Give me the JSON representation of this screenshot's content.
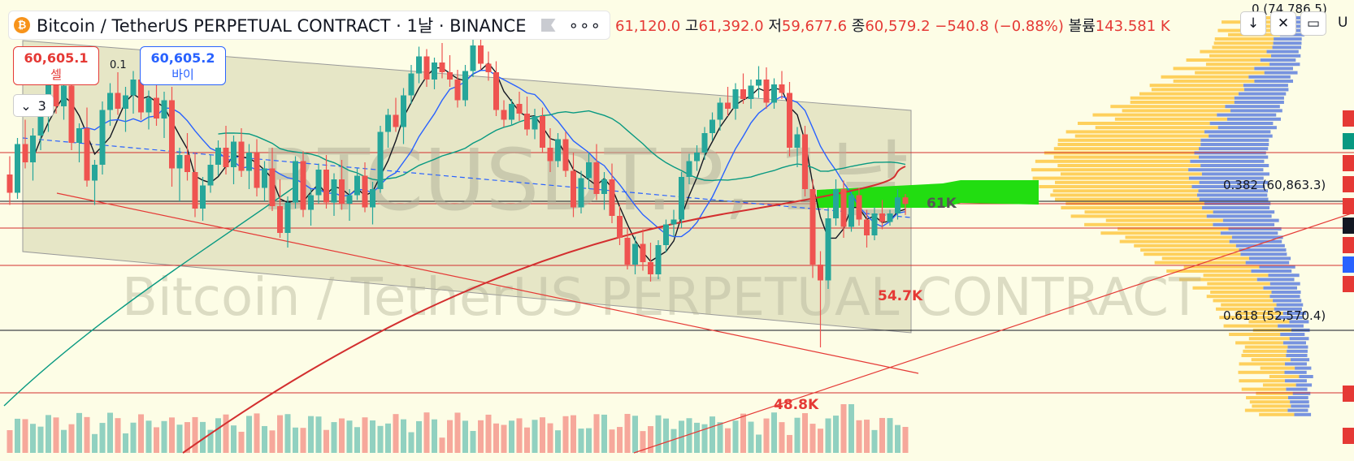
{
  "header": {
    "coin_icon": "bitcoin-icon",
    "symbol_title": "Bitcoin / TetherUS PERPETUAL CONTRACT · 1날 · BINANCE",
    "more_label": "∘∘∘"
  },
  "ohlc": {
    "open_value": "61,120.0",
    "high_key": "고",
    "high_value": "61,392.0",
    "low_key": "저",
    "low_value": "59,677.6",
    "close_key": "종",
    "close_value": "60,579.2",
    "change": "−540.8 (−0.88%)",
    "volume_key": "볼륨",
    "volume_value": "143.581 K"
  },
  "trade": {
    "sell_price": "60,605.1",
    "sell_label": "셀",
    "buy_price": "60,605.2",
    "buy_label": "바이",
    "lot_value": "3",
    "spread": "0.1"
  },
  "toolbar": {
    "arrow_icon": "↓",
    "collapse_icon": "✕",
    "window_icon": "▭",
    "cutoff_label": "U"
  },
  "watermark": {
    "ticker": "BTCUSDT.P, 1날",
    "name": "Bitcoin / TetherUS PERPETUAL CONTRACT"
  },
  "annotations": {
    "fib_top": "0 (74,786.5)",
    "fib_382": "0.382 (60,863.3)",
    "fib_618": "0.618 (52,570.4)",
    "level_61k": "61K",
    "level_547k": "54.7K",
    "level_488k": "48.8K"
  },
  "colors": {
    "candle_up": "#26a69a",
    "candle_down": "#ef5350",
    "ma_blue": "#2962ff",
    "ma_green": "#089981",
    "ma_red": "#d32f2f",
    "channel_fill": "#c8c8a0",
    "highlight_green": "#22dd11",
    "vp_orange": "#ffb300",
    "vp_blue": "#4a6fdc"
  },
  "chart_data": {
    "type": "candlestick",
    "symbol": "BTCUSDT.P",
    "interval": "1D",
    "last_close": 60579.2,
    "candles": [
      [
        63000,
        64500,
        60500,
        61500
      ],
      [
        61500,
        66000,
        61000,
        65500
      ],
      [
        65500,
        67500,
        63500,
        64000
      ],
      [
        64000,
        66800,
        62500,
        66200
      ],
      [
        66200,
        68800,
        65000,
        67900
      ],
      [
        67900,
        71500,
        66500,
        71000
      ],
      [
        71000,
        71800,
        68000,
        68600
      ],
      [
        68600,
        70800,
        67500,
        70300
      ],
      [
        70300,
        71000,
        65000,
        65600
      ],
      [
        65600,
        67200,
        64000,
        66800
      ],
      [
        66800,
        68500,
        62000,
        62500
      ],
      [
        62500,
        64200,
        60500,
        63800
      ],
      [
        63800,
        69000,
        63000,
        68300
      ],
      [
        68300,
        70500,
        67000,
        69700
      ],
      [
        69700,
        71400,
        67900,
        68400
      ],
      [
        68400,
        70200,
        66500,
        69500
      ],
      [
        69500,
        71500,
        68000,
        70800
      ],
      [
        70800,
        71800,
        67500,
        68100
      ],
      [
        68100,
        69900,
        66700,
        69300
      ],
      [
        69300,
        71000,
        67000,
        67600
      ],
      [
        67600,
        69800,
        66000,
        69100
      ],
      [
        69100,
        70200,
        62000,
        63500
      ],
      [
        63500,
        65200,
        60800,
        64600
      ],
      [
        64600,
        66400,
        62500,
        63200
      ],
      [
        63200,
        64800,
        59500,
        60200
      ],
      [
        60200,
        62800,
        59200,
        62100
      ],
      [
        62100,
        64600,
        61500,
        63800
      ],
      [
        63800,
        65800,
        62900,
        65200
      ],
      [
        65200,
        67000,
        63000,
        63600
      ],
      [
        63600,
        66200,
        62200,
        65700
      ],
      [
        65700,
        66800,
        62800,
        63300
      ],
      [
        63300,
        65500,
        61800,
        64800
      ],
      [
        64800,
        65900,
        61200,
        61900
      ],
      [
        61900,
        64100,
        60800,
        63500
      ],
      [
        63500,
        65200,
        60000,
        60400
      ],
      [
        60400,
        62600,
        57800,
        58200
      ],
      [
        58200,
        61200,
        57000,
        60700
      ],
      [
        60700,
        64500,
        60200,
        64100
      ],
      [
        64100,
        64900,
        59500,
        60100
      ],
      [
        60100,
        61800,
        58800,
        61300
      ],
      [
        61300,
        63900,
        60600,
        63400
      ],
      [
        63400,
        64600,
        60200,
        60700
      ],
      [
        60700,
        63100,
        59600,
        62600
      ],
      [
        62600,
        64200,
        60100,
        60600
      ],
      [
        60600,
        61800,
        59200,
        61300
      ],
      [
        61300,
        63500,
        60900,
        62900
      ],
      [
        62900,
        64000,
        59900,
        60300
      ],
      [
        60300,
        62400,
        58900,
        61800
      ],
      [
        61800,
        67000,
        61500,
        66500
      ],
      [
        66500,
        68400,
        65200,
        67900
      ],
      [
        67900,
        69300,
        66500,
        66900
      ],
      [
        66900,
        70100,
        65500,
        69500
      ],
      [
        69500,
        72000,
        68800,
        71300
      ],
      [
        71300,
        73500,
        70500,
        72700
      ],
      [
        72700,
        73300,
        70200,
        70800
      ],
      [
        70800,
        72600,
        70000,
        72200
      ],
      [
        72200,
        73800,
        70900,
        71400
      ],
      [
        71400,
        72800,
        70200,
        70800
      ],
      [
        70800,
        71600,
        68500,
        69100
      ],
      [
        69100,
        72000,
        68600,
        71500
      ],
      [
        71500,
        74200,
        71000,
        73600
      ],
      [
        73600,
        74500,
        71600,
        72100
      ],
      [
        72100,
        73100,
        70700,
        71400
      ],
      [
        71400,
        72300,
        67800,
        68300
      ],
      [
        68300,
        69100,
        66900,
        67500
      ],
      [
        67500,
        69200,
        67000,
        68800
      ],
      [
        68800,
        69800,
        67400,
        68000
      ],
      [
        68000,
        69400,
        66200,
        66700
      ],
      [
        66700,
        68400,
        65900,
        67800
      ],
      [
        67800,
        68500,
        64800,
        65200
      ],
      [
        65200,
        66800,
        63200,
        64100
      ],
      [
        64100,
        66400,
        63600,
        65900
      ],
      [
        65900,
        66500,
        62800,
        63300
      ],
      [
        63300,
        64800,
        59500,
        60300
      ],
      [
        60300,
        63300,
        59800,
        62700
      ],
      [
        62700,
        64800,
        61800,
        64000
      ],
      [
        64000,
        65500,
        60900,
        61400
      ],
      [
        61400,
        63200,
        60100,
        62600
      ],
      [
        62600,
        63900,
        59000,
        59600
      ],
      [
        59600,
        60400,
        57200,
        57800
      ],
      [
        57800,
        58600,
        55200,
        55600
      ],
      [
        55600,
        57900,
        54800,
        57300
      ],
      [
        57300,
        58500,
        55100,
        55800
      ],
      [
        55800,
        57400,
        54200,
        54800
      ],
      [
        54800,
        57600,
        54400,
        57200
      ],
      [
        57200,
        59300,
        56600,
        58900
      ],
      [
        58900,
        60100,
        57900,
        59300
      ],
      [
        59300,
        63200,
        58600,
        62800
      ],
      [
        62800,
        64700,
        62200,
        64100
      ],
      [
        64100,
        65400,
        63300,
        64800
      ],
      [
        64800,
        66900,
        64200,
        66400
      ],
      [
        66400,
        68100,
        65800,
        67500
      ],
      [
        67500,
        69300,
        66600,
        68900
      ],
      [
        68900,
        70200,
        67800,
        68400
      ],
      [
        68400,
        70500,
        67500,
        70000
      ],
      [
        70000,
        71300,
        68800,
        69200
      ],
      [
        69200,
        70800,
        68400,
        70300
      ],
      [
        70300,
        71900,
        69300,
        70800
      ],
      [
        70800,
        71800,
        68400,
        68900
      ],
      [
        68900,
        70900,
        68400,
        70400
      ],
      [
        70400,
        71500,
        69200,
        69700
      ],
      [
        69700,
        70600,
        64500,
        65200
      ],
      [
        65200,
        66900,
        63600,
        66300
      ],
      [
        66300,
        67000,
        61200,
        61800
      ],
      [
        61800,
        62600,
        54500,
        55600
      ],
      [
        55600,
        56700,
        48800,
        54300
      ],
      [
        54300,
        60300,
        53600,
        59400
      ],
      [
        59400,
        62600,
        58800,
        61800
      ],
      [
        61800,
        62500,
        57800,
        58700
      ],
      [
        58700,
        61600,
        58300,
        61300
      ],
      [
        61300,
        61900,
        58800,
        59300
      ],
      [
        59300,
        60100,
        57000,
        58000
      ],
      [
        58000,
        60300,
        57600,
        59800
      ],
      [
        59800,
        60900,
        58500,
        59100
      ],
      [
        59100,
        60100,
        58800,
        59800
      ],
      [
        59800,
        61800,
        59300,
        61120
      ],
      [
        61120,
        61392,
        59677.6,
        60579.2
      ]
    ],
    "ylim": [
      46000,
      76000
    ]
  }
}
